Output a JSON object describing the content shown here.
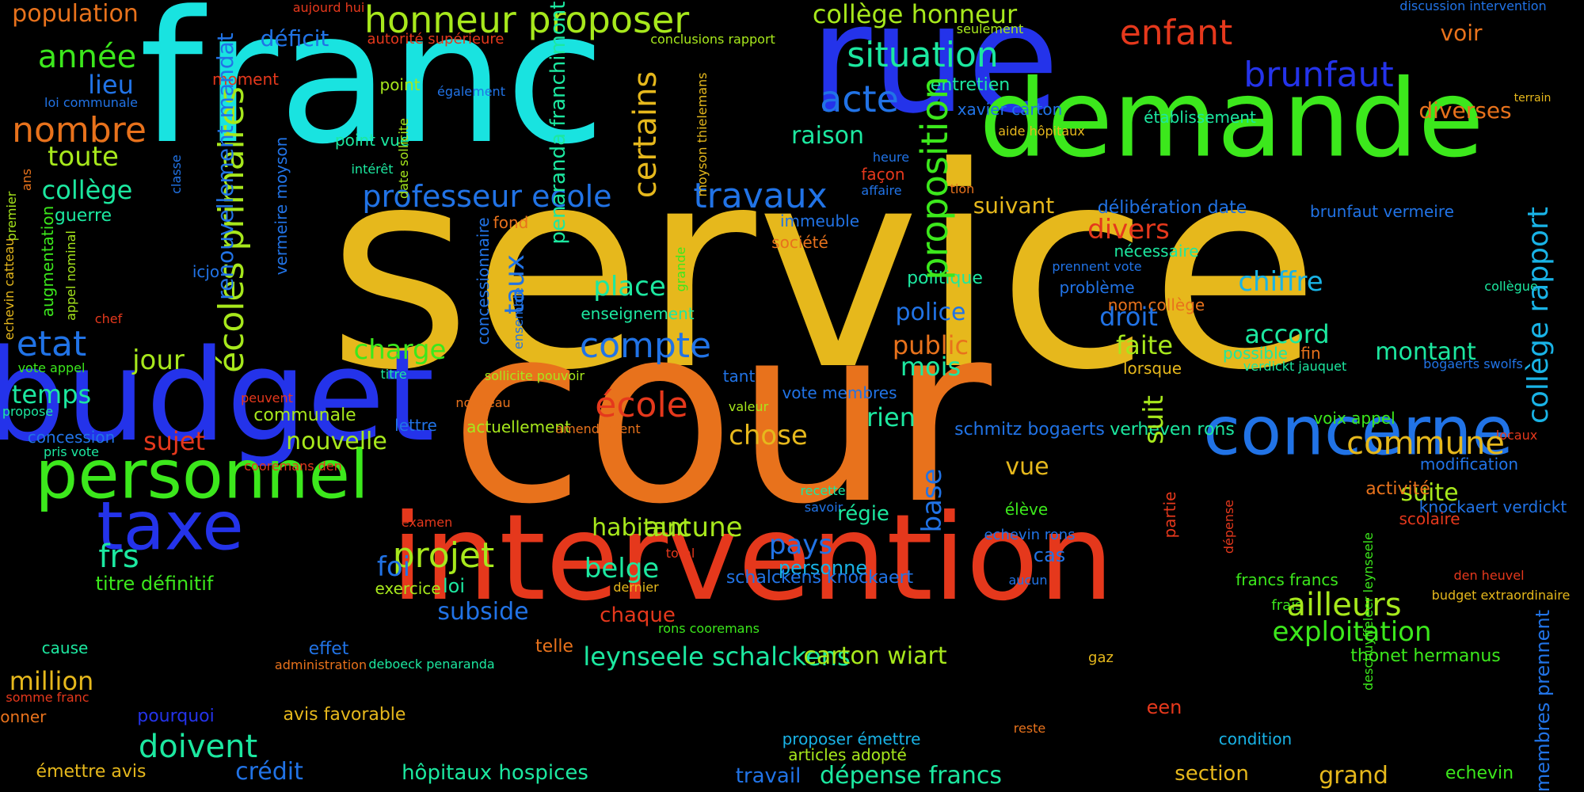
{
  "colors": {
    "background": "#000000",
    "orange": "#e8721c",
    "gold": "#e6b81c",
    "cyan": "#19e3e0",
    "blue": "#2433ea",
    "green": "#3ce81c",
    "red": "#e5381c",
    "azure": "#2173e6",
    "teal": "#1ce8a0",
    "lime": "#a7e81c",
    "sky": "#19b3e6"
  },
  "words": [
    {
      "text": "service",
      "color": "gold"
    },
    {
      "text": "cour",
      "color": "orange"
    },
    {
      "text": "franc",
      "color": "cyan"
    },
    {
      "text": "rue",
      "color": "blue"
    },
    {
      "text": "demande",
      "color": "green"
    },
    {
      "text": "budget",
      "color": "blue"
    },
    {
      "text": "intervention",
      "color": "red"
    },
    {
      "text": "personnel",
      "color": "green"
    },
    {
      "text": "concerne",
      "color": "azure"
    },
    {
      "text": "taxe",
      "color": "blue"
    },
    {
      "text": "honneur proposer",
      "color": "lime"
    },
    {
      "text": "collège honneur",
      "color": "lime"
    },
    {
      "text": "population",
      "color": "orange"
    },
    {
      "text": "enfant",
      "color": "red"
    },
    {
      "text": "voir",
      "color": "orange"
    },
    {
      "text": "brunfaut",
      "color": "blue"
    },
    {
      "text": "situation",
      "color": "teal"
    },
    {
      "text": "acte",
      "color": "azure"
    },
    {
      "text": "année",
      "color": "green"
    },
    {
      "text": "lieu",
      "color": "azure"
    },
    {
      "text": "nombre",
      "color": "orange"
    },
    {
      "text": "toute",
      "color": "lime"
    },
    {
      "text": "collège",
      "color": "teal"
    },
    {
      "text": "guerre",
      "color": "teal"
    },
    {
      "text": "déficit",
      "color": "azure"
    },
    {
      "text": "autorité supérieure",
      "color": "red"
    },
    {
      "text": "aujourd hui",
      "color": "red"
    },
    {
      "text": "conclusions rapport",
      "color": "lime"
    },
    {
      "text": "seulement",
      "color": "lime"
    },
    {
      "text": "discussion intervention",
      "color": "azure"
    },
    {
      "text": "terrain",
      "color": "gold"
    },
    {
      "text": "diverses",
      "color": "orange"
    },
    {
      "text": "établissement",
      "color": "teal"
    },
    {
      "text": "entretien",
      "color": "teal"
    },
    {
      "text": "xavier carton",
      "color": "azure"
    },
    {
      "text": "aide hôpitaux",
      "color": "gold"
    },
    {
      "text": "raison",
      "color": "teal"
    },
    {
      "text": "travaux",
      "color": "azure"
    },
    {
      "text": "professeur ecole",
      "color": "azure"
    },
    {
      "text": "point",
      "color": "lime"
    },
    {
      "text": "également",
      "color": "azure"
    },
    {
      "text": "moment",
      "color": "red"
    },
    {
      "text": "loi communale",
      "color": "azure"
    },
    {
      "text": "point vue",
      "color": "teal"
    },
    {
      "text": "intérêt",
      "color": "teal"
    },
    {
      "text": "heure",
      "color": "azure"
    },
    {
      "text": "façon",
      "color": "red"
    },
    {
      "text": "affaire",
      "color": "azure"
    },
    {
      "text": "tion",
      "color": "orange"
    },
    {
      "text": "suivant",
      "color": "gold"
    },
    {
      "text": "délibération date",
      "color": "azure"
    },
    {
      "text": "brunfaut vermeire",
      "color": "azure"
    },
    {
      "text": "immeuble",
      "color": "azure"
    },
    {
      "text": "fond",
      "color": "orange"
    },
    {
      "text": "société",
      "color": "orange"
    },
    {
      "text": "divers",
      "color": "red"
    },
    {
      "text": "nécessaire",
      "color": "teal"
    },
    {
      "text": "prennent vote",
      "color": "azure"
    },
    {
      "text": "chiffre",
      "color": "sky"
    },
    {
      "text": "collègue",
      "color": "teal"
    },
    {
      "text": "politique",
      "color": "teal"
    },
    {
      "text": "problème",
      "color": "azure"
    },
    {
      "text": "nom collège",
      "color": "orange"
    },
    {
      "text": "place",
      "color": "teal"
    },
    {
      "text": "enseignement",
      "color": "teal"
    },
    {
      "text": "icjo",
      "color": "azure"
    },
    {
      "text": "chef",
      "color": "red"
    },
    {
      "text": "etat",
      "color": "azure"
    },
    {
      "text": "jour",
      "color": "lime"
    },
    {
      "text": "charge",
      "color": "green"
    },
    {
      "text": "compte",
      "color": "azure"
    },
    {
      "text": "police",
      "color": "azure"
    },
    {
      "text": "droit",
      "color": "azure"
    },
    {
      "text": "accord",
      "color": "teal"
    },
    {
      "text": "public",
      "color": "orange"
    },
    {
      "text": "mois",
      "color": "teal"
    },
    {
      "text": "faite",
      "color": "lime"
    },
    {
      "text": "possible",
      "color": "teal"
    },
    {
      "text": "fin",
      "color": "orange"
    },
    {
      "text": "montant",
      "color": "teal"
    },
    {
      "text": "lorsque",
      "color": "gold"
    },
    {
      "text": "verdickt jauquet",
      "color": "teal"
    },
    {
      "text": "bogaerts swolfs",
      "color": "azure"
    },
    {
      "text": "vote appel",
      "color": "green"
    },
    {
      "text": "temps",
      "color": "teal"
    },
    {
      "text": "titre",
      "color": "teal"
    },
    {
      "text": "sollicite pouvoir",
      "color": "lime"
    },
    {
      "text": "tant",
      "color": "azure"
    },
    {
      "text": "vote membres",
      "color": "azure"
    },
    {
      "text": "propose",
      "color": "teal"
    },
    {
      "text": "peuvent",
      "color": "red"
    },
    {
      "text": "communale",
      "color": "lime"
    },
    {
      "text": "école",
      "color": "red"
    },
    {
      "text": "nouveau",
      "color": "orange"
    },
    {
      "text": "valeur",
      "color": "lime"
    },
    {
      "text": "rien",
      "color": "teal"
    },
    {
      "text": "schmitz bogaerts",
      "color": "azure"
    },
    {
      "text": "verheven rons",
      "color": "teal"
    },
    {
      "text": "voix appel",
      "color": "green"
    },
    {
      "text": "locaux",
      "color": "red"
    },
    {
      "text": "concession",
      "color": "azure"
    },
    {
      "text": "pris vote",
      "color": "teal"
    },
    {
      "text": "sujet",
      "color": "red"
    },
    {
      "text": "lettre",
      "color": "azure"
    },
    {
      "text": "actuellement",
      "color": "lime"
    },
    {
      "text": "amendement",
      "color": "orange"
    },
    {
      "text": "chose",
      "color": "gold"
    },
    {
      "text": "commune",
      "color": "gold"
    },
    {
      "text": "nouvelle",
      "color": "lime"
    },
    {
      "text": "cooremans den",
      "color": "red"
    },
    {
      "text": "vue",
      "color": "gold"
    },
    {
      "text": "modification",
      "color": "azure"
    },
    {
      "text": "recette",
      "color": "teal"
    },
    {
      "text": "suite",
      "color": "lime"
    },
    {
      "text": "activité",
      "color": "orange"
    },
    {
      "text": "savoir",
      "color": "azure"
    },
    {
      "text": "régie",
      "color": "teal"
    },
    {
      "text": "élève",
      "color": "green"
    },
    {
      "text": "aucune",
      "color": "lime"
    },
    {
      "text": "examen",
      "color": "red"
    },
    {
      "text": "knockaert verdickt",
      "color": "azure"
    },
    {
      "text": "scolaire",
      "color": "red"
    },
    {
      "text": "habitant",
      "color": "lime"
    },
    {
      "text": "echevin rons",
      "color": "azure"
    },
    {
      "text": "total",
      "color": "red"
    },
    {
      "text": "pays",
      "color": "azure"
    },
    {
      "text": "personne",
      "color": "sky"
    },
    {
      "text": "cas",
      "color": "azure"
    },
    {
      "text": "frs",
      "color": "teal"
    },
    {
      "text": "projet",
      "color": "lime"
    },
    {
      "text": "foi",
      "color": "azure"
    },
    {
      "text": "belge",
      "color": "teal"
    },
    {
      "text": "schalckens knockaert",
      "color": "azure"
    },
    {
      "text": "aucun",
      "color": "azure"
    },
    {
      "text": "francs francs",
      "color": "green"
    },
    {
      "text": "den heuvel",
      "color": "red"
    },
    {
      "text": "titre définitif",
      "color": "green"
    },
    {
      "text": "loi",
      "color": "teal"
    },
    {
      "text": "dernier",
      "color": "gold"
    },
    {
      "text": "exercice",
      "color": "lime"
    },
    {
      "text": "frais",
      "color": "green"
    },
    {
      "text": "ailleurs",
      "color": "lime"
    },
    {
      "text": "subside",
      "color": "azure"
    },
    {
      "text": "chaque",
      "color": "red"
    },
    {
      "text": "budget extraordinaire",
      "color": "gold"
    },
    {
      "text": "exploitation",
      "color": "green"
    },
    {
      "text": "cause",
      "color": "teal"
    },
    {
      "text": "effet",
      "color": "azure"
    },
    {
      "text": "telle",
      "color": "orange"
    },
    {
      "text": "rons cooremans",
      "color": "green"
    },
    {
      "text": "million",
      "color": "gold"
    },
    {
      "text": "administration",
      "color": "orange"
    },
    {
      "text": "deboeck penaranda",
      "color": "teal"
    },
    {
      "text": "leynseele schalckens",
      "color": "teal"
    },
    {
      "text": "carton wiart",
      "color": "lime"
    },
    {
      "text": "gaz",
      "color": "gold"
    },
    {
      "text": "thonet hermanus",
      "color": "green"
    },
    {
      "text": "somme franc",
      "color": "red"
    },
    {
      "text": "donner",
      "color": "orange"
    },
    {
      "text": "pourquoi",
      "color": "blue"
    },
    {
      "text": "avis favorable",
      "color": "gold"
    },
    {
      "text": "een",
      "color": "red"
    },
    {
      "text": "reste",
      "color": "orange"
    },
    {
      "text": "doivent",
      "color": "teal"
    },
    {
      "text": "proposer émettre",
      "color": "sky"
    },
    {
      "text": "condition",
      "color": "sky"
    },
    {
      "text": "articles adopté",
      "color": "lime"
    },
    {
      "text": "émettre avis",
      "color": "gold"
    },
    {
      "text": "crédit",
      "color": "azure"
    },
    {
      "text": "hôpitaux hospices",
      "color": "teal"
    },
    {
      "text": "travail",
      "color": "azure"
    },
    {
      "text": "dépense francs",
      "color": "teal"
    },
    {
      "text": "section",
      "color": "gold"
    },
    {
      "text": "grand",
      "color": "gold"
    },
    {
      "text": "echevin",
      "color": "green"
    },
    {
      "text": "proposition",
      "color": "green"
    },
    {
      "text": "certains",
      "color": "gold"
    },
    {
      "text": "penaranda franchimont",
      "color": "teal"
    },
    {
      "text": "écoles primaires",
      "color": "lime"
    },
    {
      "text": "renouvellement mandat",
      "color": "azure"
    },
    {
      "text": "vermeire moyson",
      "color": "azure"
    },
    {
      "text": "classe",
      "color": "azure"
    },
    {
      "text": "date sollicite",
      "color": "lime"
    },
    {
      "text": "moyson thielemans",
      "color": "gold"
    },
    {
      "text": "taux",
      "color": "azure"
    },
    {
      "text": "concessionnaire",
      "color": "azure"
    },
    {
      "text": "ensemble",
      "color": "azure"
    },
    {
      "text": "grande",
      "color": "green"
    },
    {
      "text": "premier",
      "color": "lime"
    },
    {
      "text": "ans",
      "color": "orange"
    },
    {
      "text": "augmentation",
      "color": "green"
    },
    {
      "text": "appel nominal",
      "color": "lime"
    },
    {
      "text": "echevin catteau",
      "color": "gold"
    },
    {
      "text": "base",
      "color": "azure"
    },
    {
      "text": "suit",
      "color": "lime"
    },
    {
      "text": "partie",
      "color": "red"
    },
    {
      "text": "dépense",
      "color": "red"
    },
    {
      "text": "deschuyffeleer leynseele",
      "color": "green"
    },
    {
      "text": "collège rapport",
      "color": "sky"
    },
    {
      "text": "membres prennent",
      "color": "azure"
    }
  ]
}
